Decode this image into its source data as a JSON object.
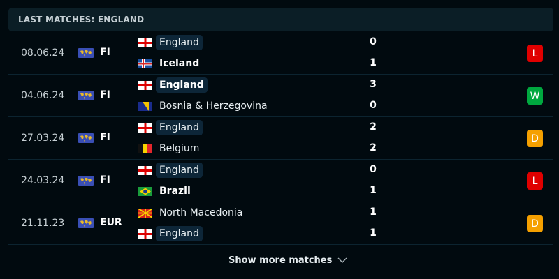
{
  "header": {
    "title": "LAST MATCHES: ENGLAND"
  },
  "colors": {
    "L": "#e00000",
    "W": "#00a83f",
    "D": "#f5a000"
  },
  "matches": [
    {
      "date": "08.06.24",
      "competition": "FI",
      "competition_icon": "world-icon",
      "home": {
        "name": "England",
        "flag": "england",
        "highlight": true,
        "winner": false
      },
      "away": {
        "name": "Iceland",
        "flag": "iceland",
        "highlight": false,
        "winner": true
      },
      "home_score": "0",
      "away_score": "1",
      "result": "L"
    },
    {
      "date": "04.06.24",
      "competition": "FI",
      "competition_icon": "world-icon",
      "home": {
        "name": "England",
        "flag": "england",
        "highlight": true,
        "winner": true
      },
      "away": {
        "name": "Bosnia & Herzegovina",
        "flag": "bosnia",
        "highlight": false,
        "winner": false
      },
      "home_score": "3",
      "away_score": "0",
      "result": "W"
    },
    {
      "date": "27.03.24",
      "competition": "FI",
      "competition_icon": "world-icon",
      "home": {
        "name": "England",
        "flag": "england",
        "highlight": true,
        "winner": false
      },
      "away": {
        "name": "Belgium",
        "flag": "belgium",
        "highlight": false,
        "winner": false
      },
      "home_score": "2",
      "away_score": "2",
      "result": "D"
    },
    {
      "date": "24.03.24",
      "competition": "FI",
      "competition_icon": "world-icon",
      "home": {
        "name": "England",
        "flag": "england",
        "highlight": true,
        "winner": false
      },
      "away": {
        "name": "Brazil",
        "flag": "brazil",
        "highlight": false,
        "winner": true
      },
      "home_score": "0",
      "away_score": "1",
      "result": "L"
    },
    {
      "date": "21.11.23",
      "competition": "EUR",
      "competition_icon": "europe-icon",
      "home": {
        "name": "North Macedonia",
        "flag": "north-macedonia",
        "highlight": false,
        "winner": false
      },
      "away": {
        "name": "England",
        "flag": "england",
        "highlight": true,
        "winner": false
      },
      "home_score": "1",
      "away_score": "1",
      "result": "D"
    }
  ],
  "show_more": {
    "label": "Show more matches",
    "icon": "chevron-down-icon"
  }
}
